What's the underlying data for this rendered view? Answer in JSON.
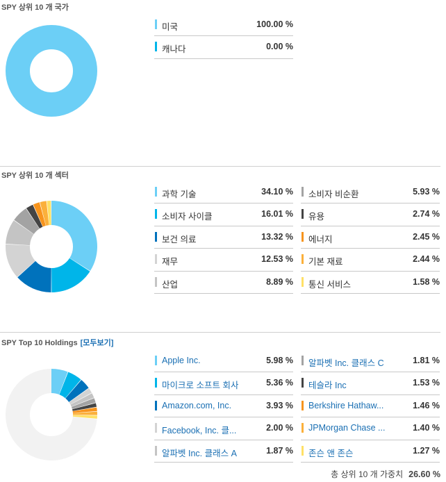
{
  "countries": {
    "title": "SPY 상위 10 개 국가",
    "chart_data": {
      "type": "pie",
      "labels": [
        "미국",
        "캐나다"
      ],
      "values": [
        100.0,
        0.0
      ],
      "colors": [
        "#6ccff6",
        "#00b5e9"
      ]
    },
    "rows": [
      {
        "label": "미국",
        "value": "100.00 %",
        "color": "#6ccff6"
      },
      {
        "label": "캐나다",
        "value": "0.00 %",
        "color": "#00b5e9"
      }
    ]
  },
  "sectors": {
    "title": "SPY 상위 10 개 섹터",
    "chart_data": {
      "type": "pie",
      "labels": [
        "과학 기술",
        "소비자 사이클",
        "보건 의료",
        "재무",
        "산업",
        "소비자 비순환",
        "유용",
        "에너지",
        "기본 재료",
        "통신 서비스"
      ],
      "values": [
        34.1,
        16.01,
        13.32,
        12.53,
        8.89,
        5.93,
        2.74,
        2.45,
        2.44,
        1.58
      ],
      "colors": [
        "#6ccff6",
        "#00b5e9",
        "#0072bc",
        "#d3d3d3",
        "#c4c4c4",
        "#a3a3a3",
        "#444444",
        "#f7941d",
        "#fbb03b",
        "#ffe066"
      ]
    },
    "rows_left": [
      {
        "label": "과학 기술",
        "value": "34.10 %",
        "color": "#6ccff6"
      },
      {
        "label": "소비자 사이클",
        "value": "16.01 %",
        "color": "#00b5e9"
      },
      {
        "label": "보건 의료",
        "value": "13.32 %",
        "color": "#0072bc"
      },
      {
        "label": "재무",
        "value": "12.53 %",
        "color": "#d3d3d3"
      },
      {
        "label": "산업",
        "value": "8.89 %",
        "color": "#c4c4c4"
      }
    ],
    "rows_right": [
      {
        "label": "소비자 비순환",
        "value": "5.93 %",
        "color": "#a3a3a3"
      },
      {
        "label": "유용",
        "value": "2.74 %",
        "color": "#444444"
      },
      {
        "label": "에너지",
        "value": "2.45 %",
        "color": "#f7941d"
      },
      {
        "label": "기본 재료",
        "value": "2.44 %",
        "color": "#fbb03b"
      },
      {
        "label": "통신 서비스",
        "value": "1.58 %",
        "color": "#ffe066"
      }
    ]
  },
  "holdings": {
    "title": "SPY Top 10 Holdings",
    "view_all": "[모두보기]",
    "chart_data": {
      "type": "pie",
      "labels": [
        "Apple Inc.",
        "마이크로 소프트 회사",
        "Amazon.com, Inc.",
        "Facebook, Inc. 클...",
        "알파벳 Inc. 클래스 A",
        "알파벳 Inc. 클래스 C",
        "테슬라 Inc",
        "Berkshire Hathaw...",
        "JPMorgan Chase ...",
        "존슨 앤 존슨"
      ],
      "values": [
        5.98,
        5.36,
        3.93,
        2.0,
        1.87,
        1.81,
        1.53,
        1.46,
        1.4,
        1.27
      ],
      "colors": [
        "#6ccff6",
        "#00b5e9",
        "#0072bc",
        "#d3d3d3",
        "#c4c4c4",
        "#a3a3a3",
        "#444444",
        "#f7941d",
        "#fbb03b",
        "#ffe066"
      ],
      "remainder_color": "#f2f2f2"
    },
    "rows_left": [
      {
        "label": "Apple Inc.",
        "value": "5.98 %",
        "color": "#6ccff6"
      },
      {
        "label": "마이크로 소프트 회사",
        "value": "5.36 %",
        "color": "#00b5e9"
      },
      {
        "label": "Amazon.com, Inc.",
        "value": "3.93 %",
        "color": "#0072bc"
      },
      {
        "label": "Facebook, Inc. 클...",
        "value": "2.00 %",
        "color": "#d3d3d3"
      },
      {
        "label": "알파벳 Inc. 클래스 A",
        "value": "1.87 %",
        "color": "#c4c4c4"
      }
    ],
    "rows_right": [
      {
        "label": "알파벳 Inc. 클래스 C",
        "value": "1.81 %",
        "color": "#a3a3a3"
      },
      {
        "label": "테슬라 Inc",
        "value": "1.53 %",
        "color": "#444444"
      },
      {
        "label": "Berkshire Hathaw...",
        "value": "1.46 %",
        "color": "#f7941d"
      },
      {
        "label": "JPMorgan Chase ...",
        "value": "1.40 %",
        "color": "#fbb03b"
      },
      {
        "label": "존슨 앤 존슨",
        "value": "1.27 %",
        "color": "#ffe066"
      }
    ],
    "total_label": "총 상위 10 개 가중치",
    "total_value": "26.60 %"
  }
}
